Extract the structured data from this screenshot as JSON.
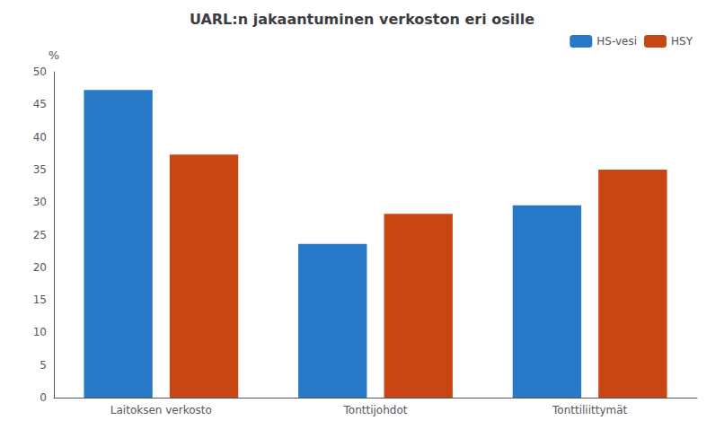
{
  "chart_data": {
    "type": "bar",
    "title": "UARL:n jakaantuminen verkoston eri osille",
    "categories": [
      "Laitoksen verkosto",
      "Tonttijohdot",
      "Tonttiliittymät"
    ],
    "series": [
      {
        "name": "HS-vesi",
        "color": "#2878C8",
        "values": [
          47.2,
          23.6,
          29.5
        ]
      },
      {
        "name": "HSY",
        "color": "#C84614",
        "values": [
          37.3,
          28.2,
          35.0
        ]
      }
    ],
    "ylabel": "%",
    "ylim": [
      0,
      50
    ],
    "yticks": [
      0,
      5,
      10,
      15,
      20,
      25,
      30,
      35,
      40,
      45,
      50
    ],
    "grid": false,
    "legend": "upper right"
  }
}
